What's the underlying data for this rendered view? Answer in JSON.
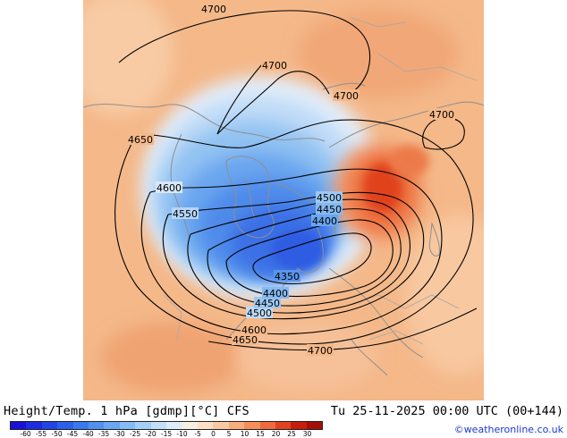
{
  "title": "Height/Temp. 1 hPa [gdmp][°C] CFS",
  "valid_time": "Tu 25-11-2025 00:00 UTC (00+144)",
  "credit": "©weatheronline.co.uk",
  "contour_labels": {
    "c4700_top": "4700",
    "c4700_mid": "4700",
    "c4700_asia": "4700",
    "c4700_east": "4700",
    "c4700_bottom": "4700",
    "c4650_left": "4650",
    "c4650_bottom": "4650",
    "c4600_left": "4600",
    "c4600_bottom": "4600",
    "c4550_left": "4550",
    "c4500_right": "4500",
    "c4500_bottom": "4500",
    "c4450_right": "4450",
    "c4450_bottom": "4450",
    "c4400_right": "4400",
    "c4400_bottom": "4400",
    "c4350": "4350"
  },
  "legend": {
    "ticks": [
      "-60",
      "-55",
      "-50",
      "-45",
      "-40",
      "-35",
      "-30",
      "-25",
      "-20",
      "-15",
      "-10",
      "-5",
      "0",
      "5",
      "10",
      "15",
      "20",
      "25",
      "30"
    ],
    "colors": [
      "#1a10d6",
      "#1c2ce0",
      "#2146e6",
      "#2a60ea",
      "#3a78ee",
      "#5290f0",
      "#6aa6f2",
      "#86bcf5",
      "#a3cef7",
      "#c2def9",
      "#ddecfb",
      "#f6efe2",
      "#fde0c4",
      "#fbc9a0",
      "#f8ae7c",
      "#f48f5a",
      "#ef6a3c",
      "#e24120",
      "#c81c0c",
      "#a50f06"
    ]
  }
}
